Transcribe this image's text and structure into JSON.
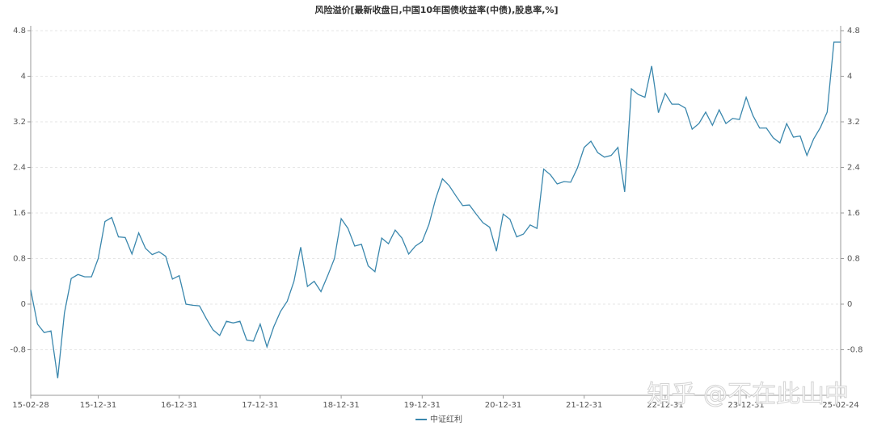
{
  "chart_data": {
    "type": "line",
    "title": "风险溢价[最新收盘日,中国10年国债收益率(中债),股息率,%]",
    "watermark": "知乎 @不在此山中",
    "categories": [
      "15-02-28",
      null,
      null,
      null,
      null,
      null,
      null,
      null,
      null,
      null,
      "15-12-31",
      null,
      null,
      null,
      null,
      null,
      null,
      null,
      null,
      null,
      null,
      null,
      "16-12-31",
      null,
      null,
      null,
      null,
      null,
      null,
      null,
      null,
      null,
      null,
      null,
      "17-12-31",
      null,
      null,
      null,
      null,
      null,
      null,
      null,
      null,
      null,
      null,
      null,
      "18-12-31",
      null,
      null,
      null,
      null,
      null,
      null,
      null,
      null,
      null,
      null,
      null,
      "19-12-31",
      null,
      null,
      null,
      null,
      null,
      null,
      null,
      null,
      null,
      null,
      null,
      "20-12-31",
      null,
      null,
      null,
      null,
      null,
      null,
      null,
      null,
      null,
      null,
      null,
      "21-12-31",
      null,
      null,
      null,
      null,
      null,
      null,
      null,
      null,
      null,
      null,
      null,
      "22-12-31",
      null,
      null,
      null,
      null,
      null,
      null,
      null,
      null,
      null,
      null,
      null,
      "23-12-31",
      null,
      null,
      null,
      null,
      null,
      null,
      null,
      null,
      null,
      null,
      null,
      null,
      null,
      "25-02-24"
    ],
    "series": [
      {
        "name": "中证红利",
        "color": "#3a87ad",
        "values": [
          0.25,
          -0.35,
          -0.5,
          -0.47,
          -1.3,
          -0.15,
          0.45,
          0.52,
          0.48,
          0.48,
          0.8,
          1.45,
          1.52,
          1.18,
          1.17,
          0.88,
          1.25,
          0.98,
          0.87,
          0.92,
          0.84,
          0.44,
          0.5,
          0.0,
          -0.02,
          -0.03,
          -0.25,
          -0.45,
          -0.55,
          -0.3,
          -0.33,
          -0.3,
          -0.63,
          -0.65,
          -0.35,
          -0.75,
          -0.4,
          -0.13,
          0.05,
          0.4,
          1.0,
          0.31,
          0.4,
          0.22,
          0.5,
          0.8,
          1.5,
          1.33,
          1.02,
          1.05,
          0.67,
          0.57,
          1.16,
          1.06,
          1.3,
          1.16,
          0.88,
          1.02,
          1.1,
          1.4,
          1.85,
          2.2,
          2.08,
          1.9,
          1.73,
          1.74,
          1.58,
          1.43,
          1.35,
          0.93,
          1.58,
          1.49,
          1.18,
          1.23,
          1.39,
          1.33,
          2.37,
          2.27,
          2.11,
          2.15,
          2.14,
          2.39,
          2.75,
          2.86,
          2.66,
          2.58,
          2.61,
          2.75,
          1.97,
          3.78,
          3.68,
          3.63,
          4.18,
          3.36,
          3.7,
          3.51,
          3.51,
          3.44,
          3.07,
          3.17,
          3.37,
          3.14,
          3.41,
          3.17,
          3.26,
          3.24,
          3.63,
          3.31,
          3.09,
          3.09,
          2.92,
          2.83,
          3.17,
          2.93,
          2.95,
          2.61,
          2.9,
          3.1,
          3.37,
          4.6,
          4.6
        ]
      }
    ],
    "ylim": [
      -1.6,
      4.8
    ],
    "yticks": [
      -0.8,
      0,
      0.8,
      1.6,
      2.4,
      3.2,
      4,
      4.8
    ],
    "y2lim": [
      -1.6,
      4.8
    ],
    "y2ticks": [
      -0.8,
      0,
      0.8,
      1.6,
      2.4,
      3.2,
      4,
      4.8
    ],
    "grid": true,
    "legend": "bottom"
  }
}
